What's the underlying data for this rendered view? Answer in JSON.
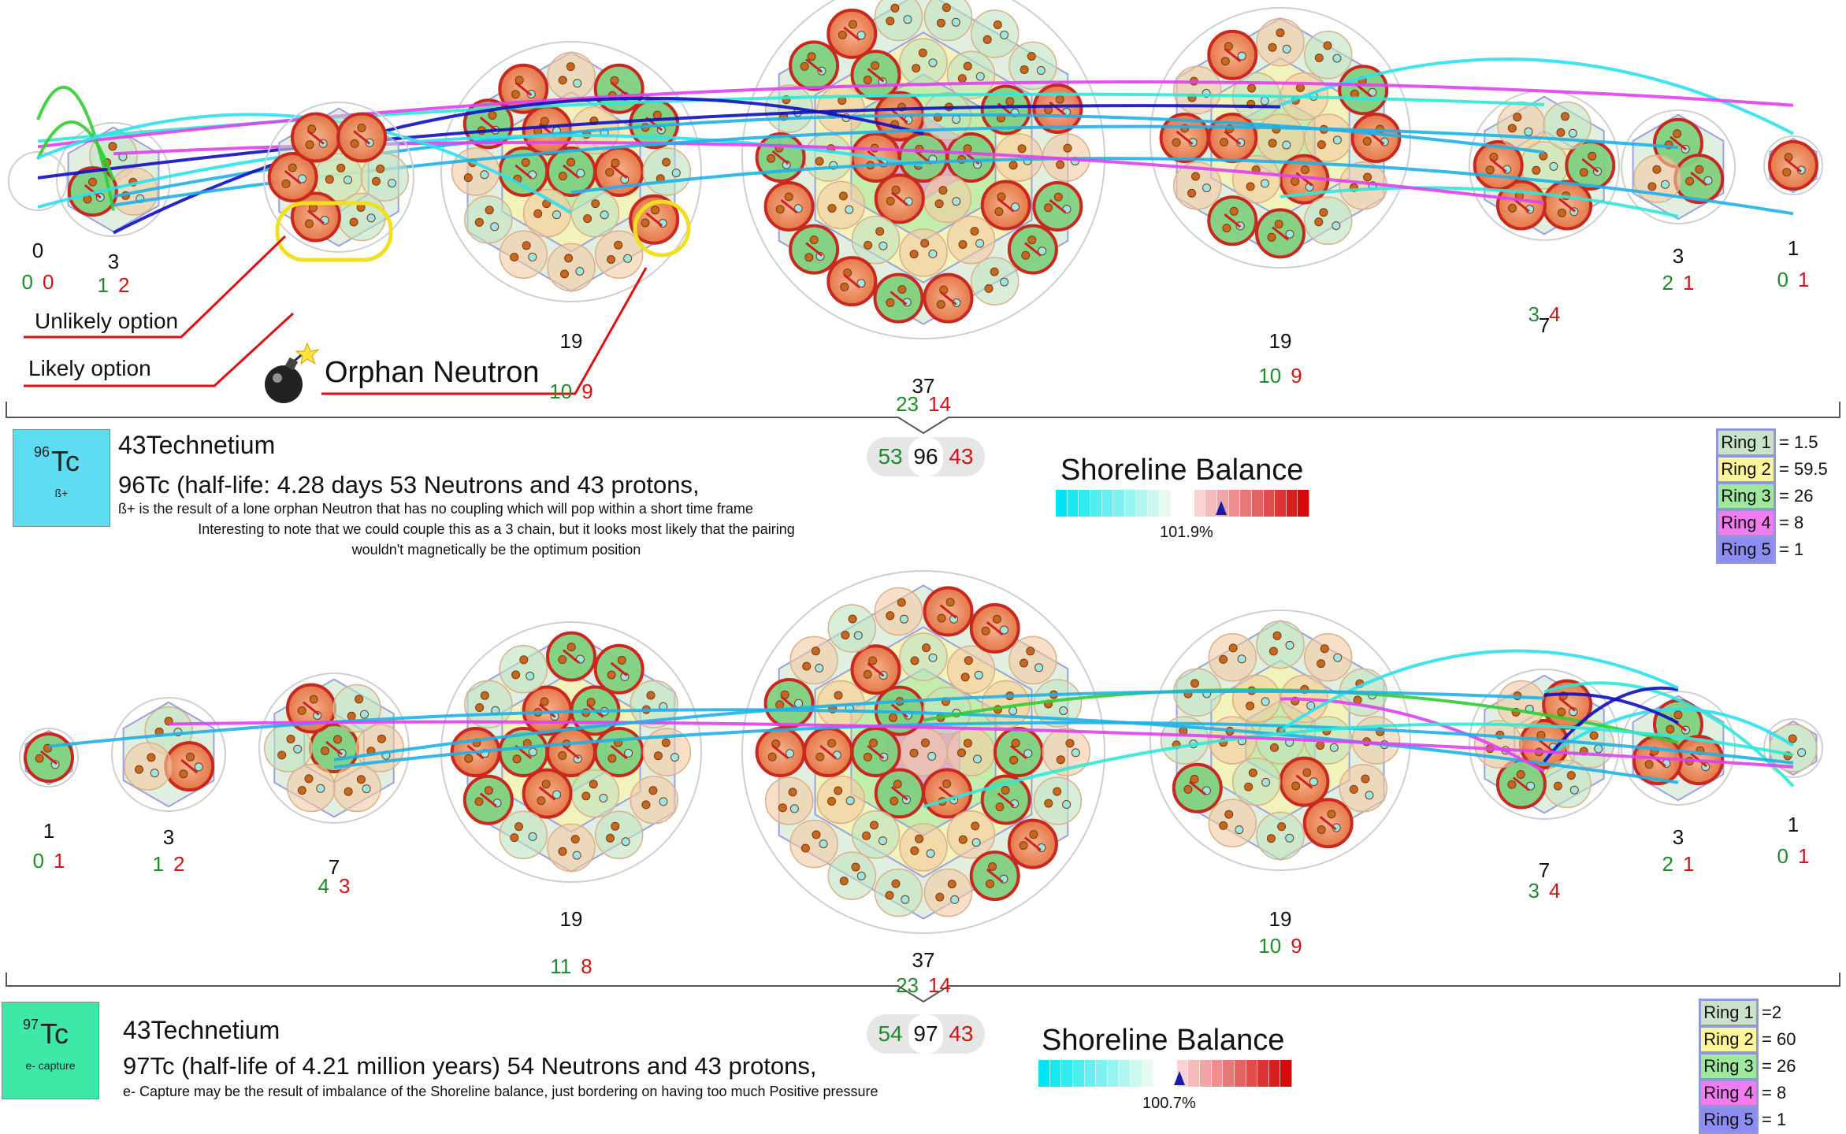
{
  "top": {
    "shells": [
      {
        "count": "0",
        "green": "0",
        "red": "0"
      },
      {
        "count": "3",
        "green": "1",
        "red": "2"
      },
      {
        "count": "19",
        "green": "10",
        "red": "9"
      },
      {
        "count": "37",
        "green": "23",
        "red": "14"
      },
      {
        "count": "19",
        "green": "10",
        "red": "9"
      },
      {
        "count": "7",
        "green": "3",
        "red": "4"
      },
      {
        "count": "3",
        "green": "2",
        "red": "1"
      },
      {
        "count": "1",
        "green": "0",
        "red": "1"
      }
    ],
    "annotations": {
      "unlikely": "Unlikely option",
      "likely": "Likely option",
      "orphan": "Orphan Neutron"
    },
    "tile": {
      "mass": "96",
      "symbol": "Tc",
      "mode": "ß+",
      "color": "#5ddcf2"
    },
    "element": "43Technetium",
    "description": "96Tc (half-life: 4.28 days 53 Neutrons and 43 protons,",
    "notes": [
      "ß+ is the result of a lone orphan Neutron that has no coupling which will pop within a short time frame",
      "Interesting to note that we could couple this as a 3 chain, but it looks most likely that the pairing",
      "wouldn't magnetically be the optimum position"
    ],
    "totals": {
      "neutrons": "53",
      "mass": "96",
      "protons": "43"
    },
    "shoreline": {
      "title": "Shoreline Balance",
      "percent": "101.9%",
      "balance": 1.019
    },
    "rings": [
      {
        "label": "Ring 1",
        "value": "= 1.5",
        "color": "#c9e2c9"
      },
      {
        "label": "Ring 2",
        "value": "= 59.5",
        "color": "#fff59a"
      },
      {
        "label": "Ring 3",
        "value": "= 26",
        "color": "#9de89d"
      },
      {
        "label": "Ring 4",
        "value": "= 8",
        "color": "#f07cf0"
      },
      {
        "label": "Ring 5",
        "value": "= 1",
        "color": "#8c8cf2"
      }
    ]
  },
  "bottom": {
    "shells": [
      {
        "count": "1",
        "green": "0",
        "red": "1"
      },
      {
        "count": "3",
        "green": "1",
        "red": "2"
      },
      {
        "count": "7",
        "green": "4",
        "red": "3"
      },
      {
        "count": "19",
        "green": "11",
        "red": "8"
      },
      {
        "count": "37",
        "green": "23",
        "red": "14"
      },
      {
        "count": "19",
        "green": "10",
        "red": "9"
      },
      {
        "count": "7",
        "green": "3",
        "red": "4"
      },
      {
        "count": "3",
        "green": "2",
        "red": "1"
      },
      {
        "count": "1",
        "green": "0",
        "red": "1"
      }
    ],
    "tile": {
      "mass": "97",
      "symbol": "Tc",
      "mode": "e- capture",
      "color": "#3ee8a6"
    },
    "element": "43Technetium",
    "description": "97Tc (half-life of 4.21 million years) 54 Neutrons and 43 protons,",
    "notes": [
      "e- Capture may be the result of imbalance of the Shoreline balance, just bordering on having too much Positive pressure"
    ],
    "totals": {
      "neutrons": "54",
      "mass": "97",
      "protons": "43"
    },
    "shoreline": {
      "title": "Shoreline Balance",
      "percent": "100.7%",
      "balance": 1.007
    },
    "rings": [
      {
        "label": "Ring 1",
        "value": "=2",
        "color": "#c9e2c9"
      },
      {
        "label": "Ring 2",
        "value": "= 60",
        "color": "#fff59a"
      },
      {
        "label": "Ring 3",
        "value": "= 26",
        "color": "#9de89d"
      },
      {
        "label": "Ring 4",
        "value": "= 8",
        "color": "#f07cf0"
      },
      {
        "label": "Ring 5",
        "value": "= 1",
        "color": "#8c8cf2"
      }
    ]
  }
}
